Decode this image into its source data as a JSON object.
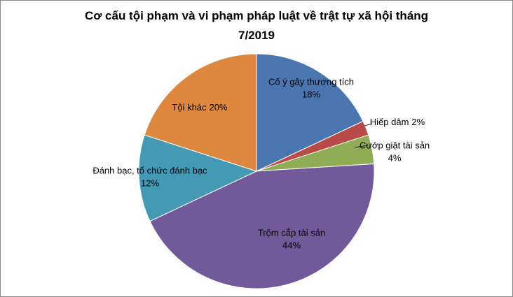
{
  "chart_data": {
    "type": "pie",
    "title": "Cơ cấu tội phạm và vi phạm pháp luật về trật tự xã hội tháng 7/2019",
    "categories": [
      "Cố ý gây thương tích",
      "Hiếp dâm",
      "Cướp giật tài sản",
      "Trộm cắp tài sản",
      "Đánh bạc, tổ chức đánh bạc",
      "Tội khác"
    ],
    "values": [
      18,
      2,
      4,
      44,
      12,
      20
    ],
    "value_labels": [
      "18%",
      "2%",
      "4%",
      "44%",
      "12%",
      "20%"
    ],
    "colors": [
      "#4a76af",
      "#b94a47",
      "#8fad55",
      "#72599a",
      "#4499b5",
      "#dd873f"
    ]
  }
}
